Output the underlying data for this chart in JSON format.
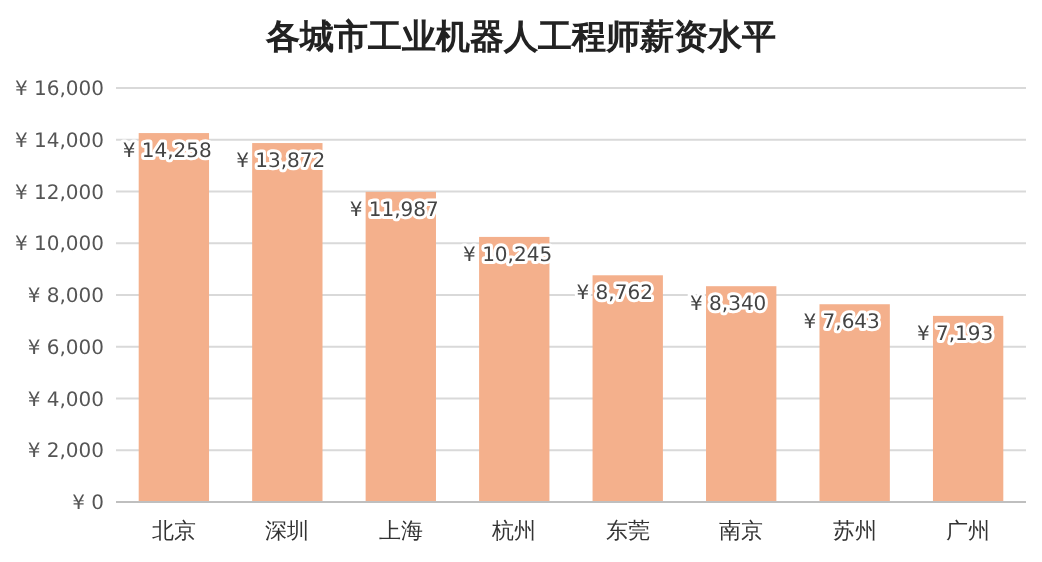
{
  "chart_data": {
    "type": "bar",
    "title": "各城市工业机器人工程师薪资水平",
    "categories": [
      "北京",
      "深圳",
      "上海",
      "杭州",
      "东莞",
      "南京",
      "苏州",
      "广州"
    ],
    "values": [
      14258,
      13872,
      11987,
      10245,
      8762,
      8340,
      7643,
      7193
    ],
    "value_labels": [
      "¥ 14,258",
      "¥ 13,872",
      "¥ 11,987",
      "¥ 10,245",
      "¥ 8,762",
      "¥ 8,340",
      "¥ 7,643",
      "¥ 7,193"
    ],
    "color": "#f4b08c",
    "ylim": [
      0,
      16000
    ],
    "yticks": [
      {
        "value": 0,
        "label": "¥ 0"
      },
      {
        "value": 2000,
        "label": "¥ 2,000"
      },
      {
        "value": 4000,
        "label": "¥ 4,000"
      },
      {
        "value": 6000,
        "label": "¥ 6,000"
      },
      {
        "value": 8000,
        "label": "¥ 8,000"
      },
      {
        "value": 10000,
        "label": "¥ 10,000"
      },
      {
        "value": 12000,
        "label": "¥ 12,000"
      },
      {
        "value": 14000,
        "label": "¥ 14,000"
      },
      {
        "value": 16000,
        "label": "¥ 16,000"
      }
    ],
    "grid": "y"
  }
}
